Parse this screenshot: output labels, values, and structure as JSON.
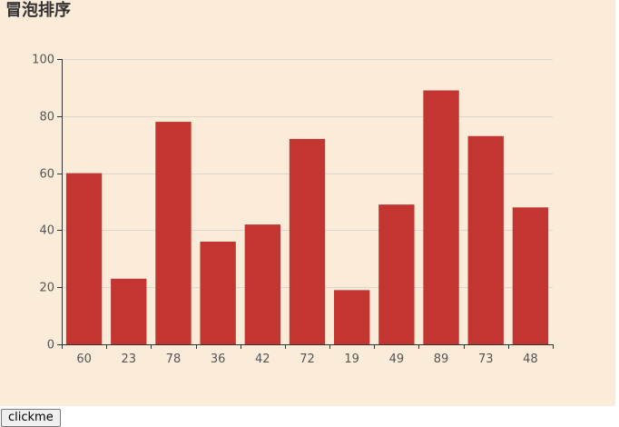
{
  "chart_data": {
    "type": "bar",
    "title": "冒泡排序",
    "categories": [
      "60",
      "23",
      "78",
      "36",
      "42",
      "72",
      "19",
      "49",
      "89",
      "73",
      "48"
    ],
    "values": [
      60,
      23,
      78,
      36,
      42,
      72,
      19,
      49,
      89,
      73,
      48
    ],
    "ylim": [
      0,
      100
    ],
    "yticks": [
      0,
      20,
      40,
      60,
      80,
      100
    ],
    "grid": true,
    "colors": {
      "bar": "#c23531",
      "background": "#fbebd9",
      "grid": "#dcd6ce",
      "axis": "#333333"
    }
  },
  "controls": {
    "button_label": "clickme"
  }
}
